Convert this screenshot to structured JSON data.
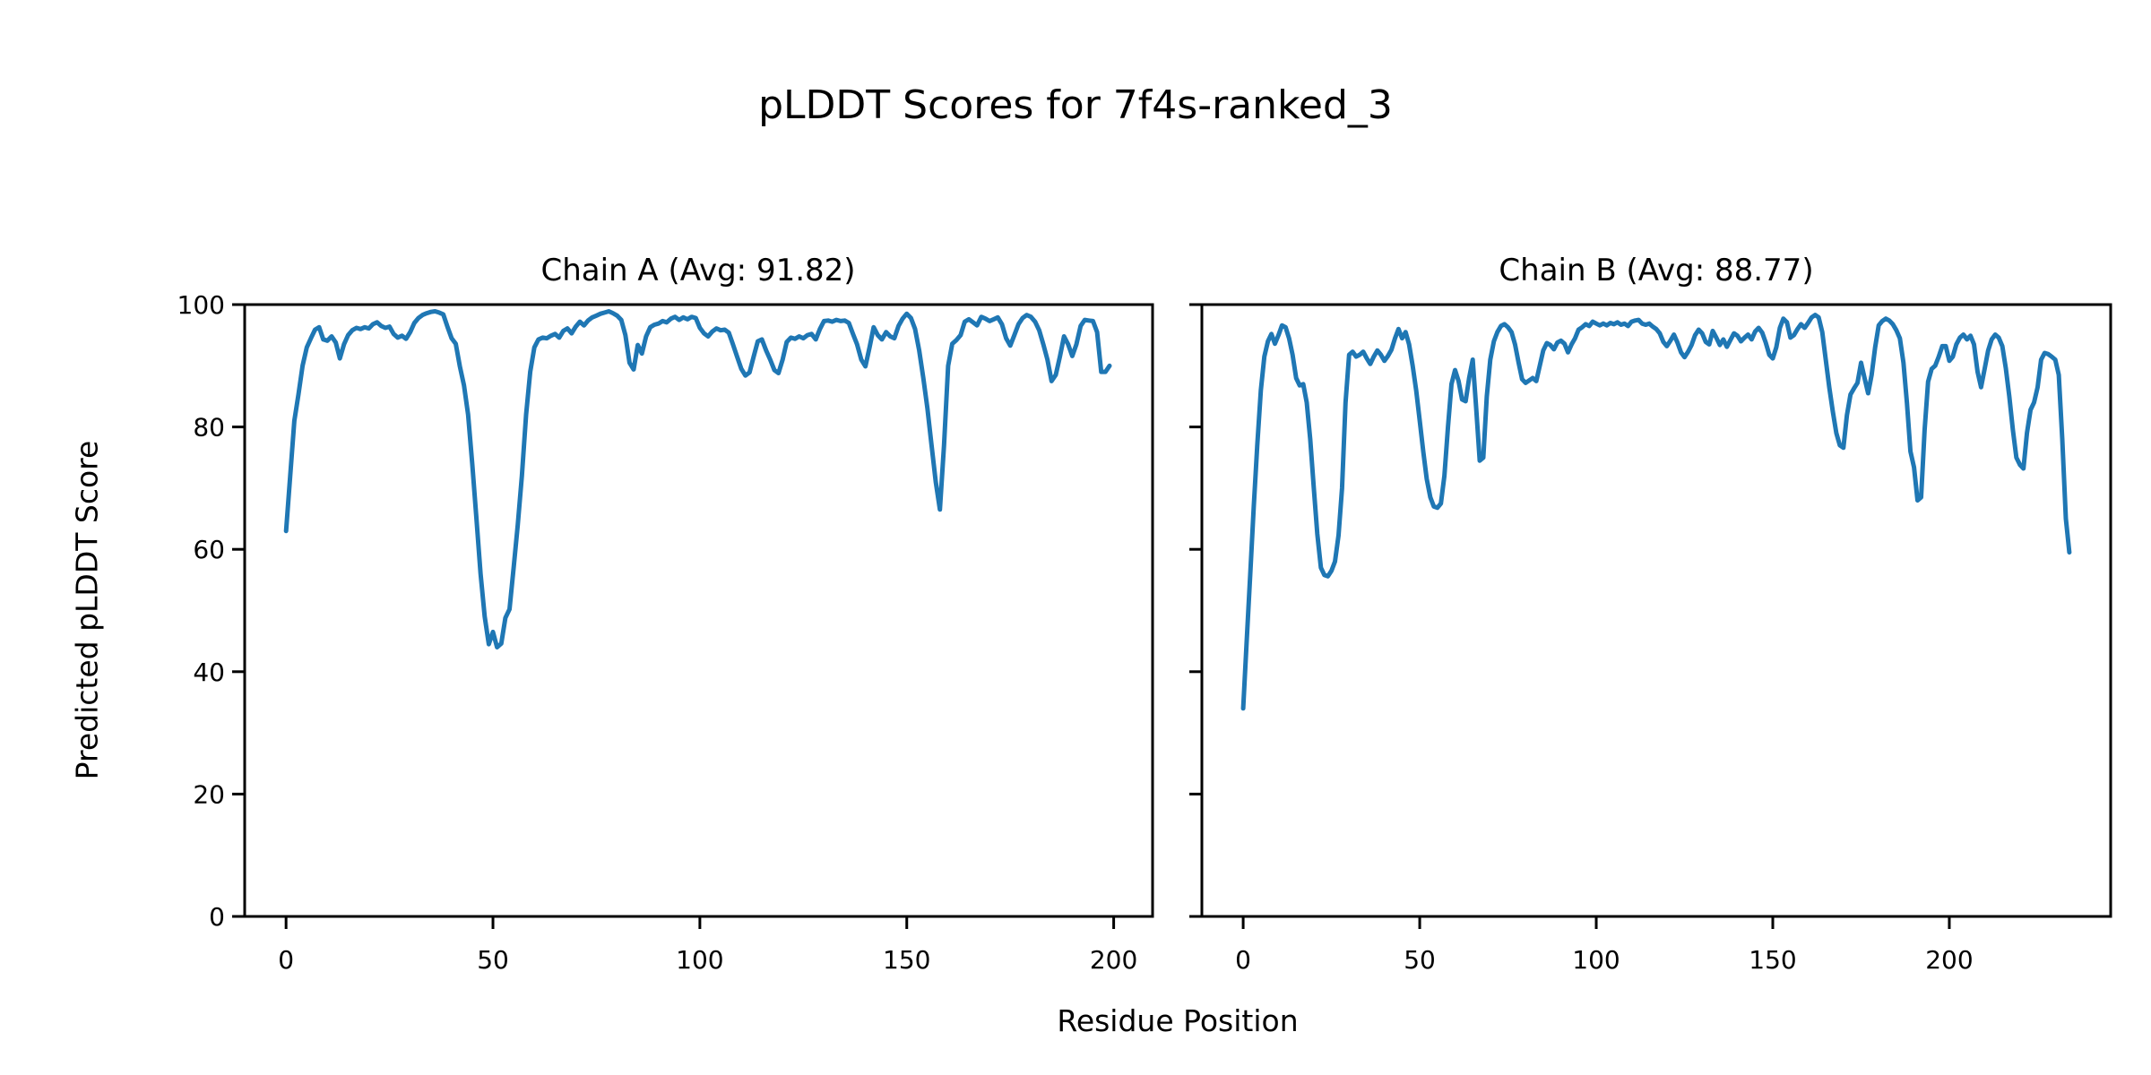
{
  "figure": {
    "title": "pLDDT Scores for 7f4s-ranked_3"
  },
  "chart_data": {
    "type": "line",
    "suptitle": "pLDDT Scores for 7f4s-ranked_3",
    "xlabel": "Residue Position",
    "ylabel": "Predicted pLDDT Score",
    "line_color": "#1f77b4",
    "background_color": "#ffffff",
    "grid": false,
    "legend": "none",
    "subplots": [
      {
        "title": "Chain A (Avg: 91.82)",
        "chain": "A",
        "avg": 91.82,
        "xlim": [
          -10,
          209.4
        ],
        "ylim": [
          0,
          100
        ],
        "xticks": [
          0,
          50,
          100,
          150,
          200
        ],
        "yticks": [
          0,
          20,
          40,
          60,
          80,
          100
        ],
        "x_start": 0,
        "values": [
          63,
          72,
          81,
          85.3,
          90,
          93,
          94.5,
          95.9,
          96.3,
          94.3,
          94.1,
          94.8,
          93.8,
          91.2,
          93.5,
          95,
          95.8,
          96.2,
          96,
          96.3,
          96.1,
          96.8,
          97.1,
          96.5,
          96.2,
          96.4,
          95.2,
          94.6,
          94.9,
          94.4,
          95.5,
          97,
          97.8,
          98.3,
          98.6,
          98.8,
          98.9,
          98.7,
          98.4,
          96.4,
          94.5,
          93.6,
          89.9,
          86.8,
          82,
          74,
          65,
          56,
          49,
          44.5,
          46.5,
          44,
          44.6,
          48.8,
          50.2,
          57,
          64,
          72,
          82,
          89,
          93,
          94.3,
          94.6,
          94.5,
          94.9,
          95.2,
          94.6,
          95.7,
          96.1,
          95.3,
          96.4,
          97.2,
          96.6,
          97.4,
          97.9,
          98.2,
          98.5,
          98.7,
          98.9,
          98.6,
          98.2,
          97.5,
          95,
          90.5,
          89.4,
          93.4,
          92,
          94.8,
          96.3,
          96.7,
          96.9,
          97.3,
          97.1,
          97.7,
          98,
          97.5,
          97.9,
          97.6,
          98,
          97.8,
          96.2,
          95.3,
          94.8,
          95.6,
          96.1,
          95.8,
          95.9,
          95.4,
          93.5,
          91.5,
          89.5,
          88.4,
          88.9,
          91.5,
          94,
          94.3,
          92.5,
          91,
          89.3,
          88.8,
          91,
          93.9,
          94.6,
          94.4,
          94.8,
          94.5,
          95,
          95.2,
          94.3,
          96,
          97.3,
          97.4,
          97.2,
          97.5,
          97.3,
          97.4,
          97,
          95.2,
          93.5,
          91,
          89.9,
          93,
          96.3,
          95,
          94.3,
          95.5,
          94.8,
          94.5,
          96.5,
          97.7,
          98.5,
          97.8,
          96,
          92.5,
          88,
          83,
          77,
          71,
          66.5,
          77,
          90,
          93.6,
          94.2,
          95,
          97.2,
          97.6,
          97.1,
          96.6,
          98,
          97.7,
          97.3,
          97.6,
          97.9,
          96.8,
          94.5,
          93.3,
          95,
          96.8,
          97.8,
          98.3,
          98,
          97.2,
          95.8,
          93.5,
          91,
          87.5,
          88.5,
          91.5,
          94.8,
          93.5,
          91.6,
          93.5,
          96.5,
          97.5,
          97.4,
          97.3,
          95.5,
          89,
          89,
          90
        ]
      },
      {
        "title": "Chain B (Avg: 88.77)",
        "chain": "B",
        "avg": 88.77,
        "xlim": [
          -11.7,
          245.7
        ],
        "ylim": [
          0,
          100
        ],
        "xticks": [
          0,
          50,
          100,
          150,
          200
        ],
        "yticks": [
          0,
          20,
          40,
          60,
          80,
          100
        ],
        "x_start": 0,
        "values": [
          34,
          45,
          56,
          67,
          77,
          86,
          91.5,
          94,
          95.2,
          93.6,
          95,
          96.6,
          96.3,
          94.5,
          91.8,
          88,
          86.8,
          87,
          84,
          78,
          70,
          62.5,
          57,
          55.8,
          55.6,
          56.5,
          58,
          62.3,
          70,
          84,
          91.8,
          92.3,
          91.5,
          91.8,
          92.3,
          91.2,
          90.3,
          91.5,
          92.5,
          91.8,
          90.8,
          91.6,
          92.6,
          94.5,
          96,
          94.5,
          95.5,
          93.5,
          90,
          86,
          81,
          76,
          71.5,
          68.5,
          67,
          66.8,
          67.5,
          72,
          80,
          87,
          89.3,
          87.5,
          84.5,
          84.2,
          88,
          91,
          83,
          74.5,
          75,
          85,
          91,
          94,
          95.5,
          96.5,
          96.8,
          96.3,
          95.5,
          93.5,
          90.5,
          87.8,
          87.2,
          87.6,
          88,
          87.5,
          90,
          92.5,
          93.7,
          93.4,
          92.7,
          93.8,
          94.1,
          93.6,
          92.2,
          93.5,
          94.5,
          95.9,
          96.3,
          96.8,
          96.5,
          97.2,
          96.9,
          96.6,
          96.9,
          96.6,
          97,
          96.8,
          97.1,
          96.7,
          96.9,
          96.5,
          97.2,
          97.4,
          97.5,
          96.9,
          96.7,
          96.9,
          96.4,
          96,
          95.3,
          93.9,
          93.2,
          94.1,
          95.1,
          93.8,
          92.2,
          91.4,
          92.3,
          93.4,
          95,
          95.9,
          95.3,
          93.9,
          93.5,
          95.7,
          94.6,
          93.4,
          94.3,
          93.1,
          94.2,
          95.3,
          94.9,
          94,
          94.6,
          95.1,
          94.3,
          95.6,
          96.2,
          95.4,
          93.8,
          91.8,
          91.2,
          93,
          96.2,
          97.7,
          97.1,
          94.6,
          95,
          96,
          96.8,
          96.2,
          97,
          97.9,
          98.3,
          97.9,
          95.5,
          91,
          86.5,
          82.5,
          79,
          77,
          76.6,
          81.9,
          85.3,
          86.3,
          87.2,
          90.5,
          88,
          85.5,
          88.5,
          93,
          96.6,
          97.3,
          97.7,
          97.4,
          96.8,
          95.8,
          94.5,
          90.5,
          83.9,
          76,
          73.4,
          68,
          68.5,
          79.5,
          87.4,
          89.5,
          90,
          91.5,
          93.2,
          93.2,
          90.8,
          91.5,
          93.5,
          94.6,
          95.1,
          94.3,
          94.9,
          93.5,
          89,
          86.5,
          89.5,
          92.5,
          94.3,
          95.1,
          94.6,
          93.2,
          89.6,
          85,
          79.5,
          75,
          73.8,
          73.2,
          79,
          82.8,
          84,
          86.5,
          91,
          92.1,
          91.9,
          91.5,
          91,
          88.5,
          78,
          65,
          59.5
        ]
      }
    ]
  }
}
